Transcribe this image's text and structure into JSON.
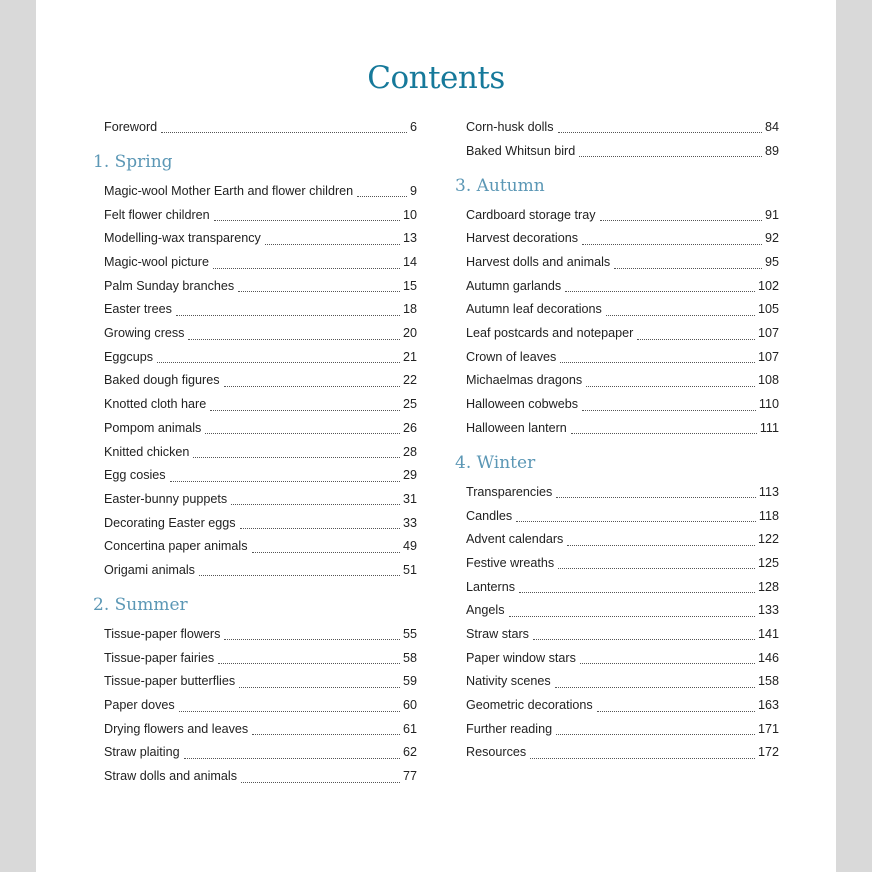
{
  "title": "Contents",
  "left_column": [
    {
      "type": "entry",
      "label": "Foreword",
      "page": "6"
    },
    {
      "type": "section",
      "label": "1. Spring"
    },
    {
      "type": "entry",
      "label": "Magic-wool Mother Earth and flower children",
      "page": "9"
    },
    {
      "type": "entry",
      "label": "Felt flower children",
      "page": "10"
    },
    {
      "type": "entry",
      "label": "Modelling-wax transparency",
      "page": "13"
    },
    {
      "type": "entry",
      "label": "Magic-wool picture",
      "page": "14"
    },
    {
      "type": "entry",
      "label": "Palm Sunday branches",
      "page": "15"
    },
    {
      "type": "entry",
      "label": "Easter trees",
      "page": "18"
    },
    {
      "type": "entry",
      "label": "Growing cress",
      "page": "20"
    },
    {
      "type": "entry",
      "label": "Eggcups",
      "page": "21"
    },
    {
      "type": "entry",
      "label": "Baked dough figures",
      "page": "22"
    },
    {
      "type": "entry",
      "label": "Knotted cloth hare",
      "page": "25"
    },
    {
      "type": "entry",
      "label": "Pompom animals",
      "page": "26"
    },
    {
      "type": "entry",
      "label": "Knitted chicken",
      "page": "28"
    },
    {
      "type": "entry",
      "label": "Egg cosies",
      "page": "29"
    },
    {
      "type": "entry",
      "label": "Easter-bunny puppets",
      "page": "31"
    },
    {
      "type": "entry",
      "label": "Decorating Easter eggs",
      "page": "33"
    },
    {
      "type": "entry",
      "label": "Concertina paper animals",
      "page": "49"
    },
    {
      "type": "entry",
      "label": "Origami animals",
      "page": "51"
    },
    {
      "type": "section",
      "label": "2. Summer"
    },
    {
      "type": "entry",
      "label": "Tissue-paper flowers",
      "page": "55"
    },
    {
      "type": "entry",
      "label": "Tissue-paper fairies",
      "page": "58"
    },
    {
      "type": "entry",
      "label": "Tissue-paper butterflies",
      "page": "59"
    },
    {
      "type": "entry",
      "label": "Paper doves",
      "page": "60"
    },
    {
      "type": "entry",
      "label": "Drying flowers and leaves",
      "page": "61"
    },
    {
      "type": "entry",
      "label": "Straw plaiting",
      "page": "62"
    },
    {
      "type": "entry",
      "label": "Straw dolls and animals",
      "page": "77"
    }
  ],
  "right_column": [
    {
      "type": "entry",
      "label": "Corn-husk dolls",
      "page": "84"
    },
    {
      "type": "entry",
      "label": "Baked Whitsun bird",
      "page": "89"
    },
    {
      "type": "section",
      "label": "3. Autumn"
    },
    {
      "type": "entry",
      "label": "Cardboard storage tray",
      "page": "91"
    },
    {
      "type": "entry",
      "label": "Harvest decorations",
      "page": "92"
    },
    {
      "type": "entry",
      "label": "Harvest dolls and animals",
      "page": "95"
    },
    {
      "type": "entry",
      "label": "Autumn garlands",
      "page": "102"
    },
    {
      "type": "entry",
      "label": "Autumn leaf decorations",
      "page": "105"
    },
    {
      "type": "entry",
      "label": "Leaf postcards and notepaper",
      "page": "107"
    },
    {
      "type": "entry",
      "label": "Crown of leaves",
      "page": "107"
    },
    {
      "type": "entry",
      "label": "Michaelmas dragons",
      "page": "108"
    },
    {
      "type": "entry",
      "label": "Halloween cobwebs",
      "page": "110"
    },
    {
      "type": "entry",
      "label": "Halloween lantern",
      "page": "111"
    },
    {
      "type": "section",
      "label": "4. Winter"
    },
    {
      "type": "entry",
      "label": "Transparencies",
      "page": "113"
    },
    {
      "type": "entry",
      "label": "Candles",
      "page": "118"
    },
    {
      "type": "entry",
      "label": "Advent calendars",
      "page": "122"
    },
    {
      "type": "entry",
      "label": "Festive wreaths",
      "page": "125"
    },
    {
      "type": "entry",
      "label": "Lanterns",
      "page": "128"
    },
    {
      "type": "entry",
      "label": "Angels",
      "page": "133"
    },
    {
      "type": "entry",
      "label": "Straw stars",
      "page": "141"
    },
    {
      "type": "entry",
      "label": "Paper window stars",
      "page": "146"
    },
    {
      "type": "entry",
      "label": "Nativity scenes",
      "page": "158"
    },
    {
      "type": "entry",
      "label": "Geometric decorations",
      "page": "163"
    },
    {
      "type": "entry",
      "label": "Further reading",
      "page": "171"
    },
    {
      "type": "entry",
      "label": "Resources",
      "page": "172"
    }
  ],
  "colors": {
    "title": "#16799a",
    "section": "#5b97b5",
    "text": "#222222",
    "background": "#d9d9d9",
    "page": "#ffffff"
  }
}
